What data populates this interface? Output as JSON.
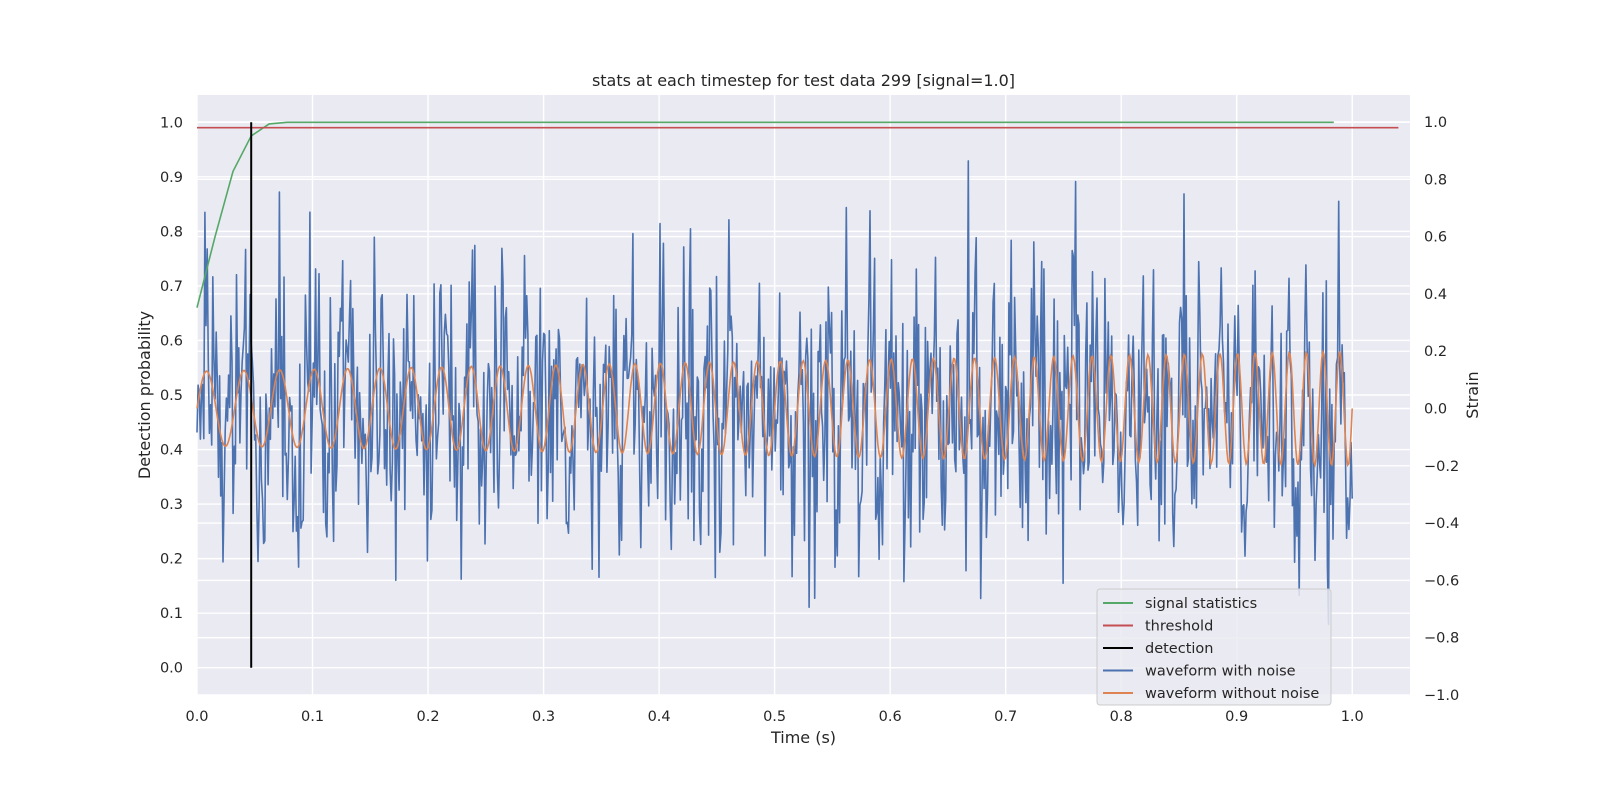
{
  "chart_data": {
    "type": "line",
    "title": "stats at each timestep for test data 299 [signal=1.0]",
    "xlabel": "Time (s)",
    "ylabel_left": "Detection probability",
    "ylabel_right": "Strain",
    "xlim": [
      0.0,
      1.05
    ],
    "ylim_left": [
      -0.05,
      1.05
    ],
    "ylim_right": [
      -1.0,
      1.0
    ],
    "x_ticks": [
      "0.0",
      "0.1",
      "0.2",
      "0.3",
      "0.4",
      "0.5",
      "0.6",
      "0.7",
      "0.8",
      "0.9",
      "1.0"
    ],
    "y_left_ticks": [
      "0.0",
      "0.1",
      "0.2",
      "0.3",
      "0.4",
      "0.5",
      "0.6",
      "0.7",
      "0.8",
      "0.9",
      "1.0"
    ],
    "y_right_ticks": [
      "−1.0",
      "−0.8",
      "−0.6",
      "−0.4",
      "−0.2",
      "0.0",
      "0.2",
      "0.4",
      "0.6",
      "0.8",
      "1.0"
    ],
    "grid": true,
    "legend_position": "lower-right",
    "legend": [
      {
        "label": "signal statistics",
        "color": "#55a868"
      },
      {
        "label": "threshold",
        "color": "#c44e52"
      },
      {
        "label": "detection",
        "color": "#000000"
      },
      {
        "label": "waveform with noise",
        "color": "#4c72b0"
      },
      {
        "label": "waveform without noise",
        "color": "#dd8452"
      }
    ],
    "series": [
      {
        "name": "signal statistics",
        "axis": "left",
        "color": "#55a868",
        "x": [
          0.0,
          0.0156,
          0.0312,
          0.0469,
          0.0625,
          0.0781,
          0.1,
          0.2,
          0.3,
          0.4,
          0.5,
          0.6,
          0.7,
          0.8,
          0.9,
          0.984
        ],
        "y": [
          0.66,
          0.79,
          0.91,
          0.975,
          0.997,
          1.0,
          1.0,
          1.0,
          1.0,
          1.0,
          1.0,
          1.0,
          1.0,
          1.0,
          1.0,
          1.0
        ]
      },
      {
        "name": "threshold",
        "axis": "left",
        "color": "#c44e52",
        "x": [
          0.0,
          1.04
        ],
        "y": [
          0.99,
          0.99
        ]
      },
      {
        "name": "detection",
        "axis": "left",
        "color": "#000000",
        "x": [
          0.0469,
          0.0469
        ],
        "y": [
          0.0,
          1.0
        ]
      },
      {
        "name": "waveform with noise",
        "axis": "right",
        "color": "#4c72b0",
        "x_range": [
          0.0,
          1.0
        ],
        "n_samples": 1024,
        "y_range": [
          -0.92,
          1.0
        ],
        "y": []
      },
      {
        "name": "waveform without noise",
        "axis": "right",
        "color": "#dd8452",
        "x_range": [
          0.0,
          1.0
        ],
        "frequency_hz": [
          30,
          70
        ],
        "amplitude": [
          0.13,
          0.2
        ]
      }
    ]
  }
}
